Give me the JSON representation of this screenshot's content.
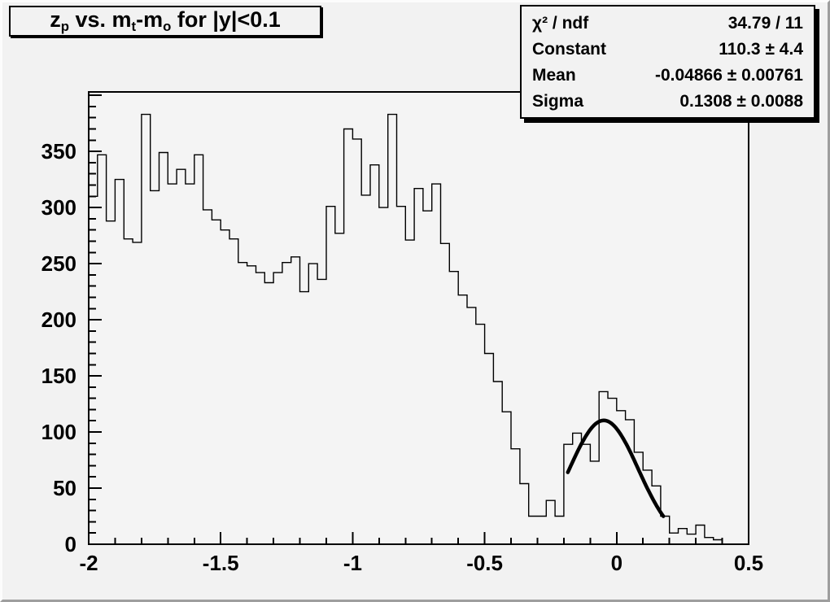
{
  "title": {
    "full_text": "z_p vs. m_t-m_o for |y|<0.1",
    "t1": "z",
    "s1": "p",
    "t2": " vs. m",
    "s2": "t",
    "t3": "-m",
    "s3": "o",
    "t4": " for |y|<0.1"
  },
  "stats": {
    "rows": [
      {
        "label": "χ² / ndf",
        "value": "34.79 / 11"
      },
      {
        "label": "Constant",
        "value": "110.3 ± 4.4"
      },
      {
        "label": "Mean",
        "value": "-0.04866 ± 0.00761"
      },
      {
        "label": "Sigma",
        "value": "0.1308 ± 0.0088"
      }
    ]
  },
  "colors": {
    "canvas_bg": "#f2f2f2",
    "frame_bg": "#f4f4f4",
    "line_color": "#000000",
    "text_color": "#000000"
  },
  "chart_data": {
    "type": "bar",
    "subtype": "step-histogram",
    "title": "z_p vs. m_t-m_o for |y|<0.1",
    "xlabel": "",
    "ylabel": "",
    "xlim": [
      -2,
      0.5
    ],
    "ylim": [
      0,
      403
    ],
    "grid": false,
    "n_bins": 75,
    "bin_start": -2,
    "bin_width": 0.0333333,
    "values": [
      310,
      347,
      288,
      325,
      272,
      269,
      383,
      315,
      349,
      321,
      334,
      321,
      347,
      298,
      289,
      280,
      272,
      251,
      248,
      242,
      233,
      242,
      251,
      256,
      225,
      250,
      236,
      301,
      277,
      370,
      361,
      311,
      338,
      300,
      383,
      301,
      271,
      317,
      297,
      321,
      268,
      243,
      222,
      211,
      196,
      170,
      145,
      118,
      85,
      54,
      25,
      25,
      39,
      25,
      89,
      99,
      89,
      74,
      136,
      130,
      119,
      111,
      82,
      66,
      52,
      25,
      10,
      14,
      9,
      17,
      6,
      4,
      0,
      0,
      0
    ],
    "x_ticks_major": [
      -2,
      -1.5,
      -1,
      -0.5,
      0,
      0.5
    ],
    "x_tick_labels": [
      "-2",
      "-1.5",
      "-1",
      "-0.5",
      "0",
      "0.5"
    ],
    "x_minor_step": 0.1,
    "y_ticks_major": [
      0,
      50,
      100,
      150,
      200,
      250,
      300,
      350
    ],
    "y_tick_labels": [
      "0",
      "50",
      "100",
      "150",
      "200",
      "250",
      "300",
      "350"
    ],
    "y_minor_step": 10,
    "legend": "none",
    "fit": {
      "type": "gaussian",
      "constant": 110.3,
      "mean": -0.04866,
      "sigma": 0.1308,
      "draw_range": [
        -0.185,
        0.177
      ],
      "chi2": 34.79,
      "ndf": 11
    }
  }
}
